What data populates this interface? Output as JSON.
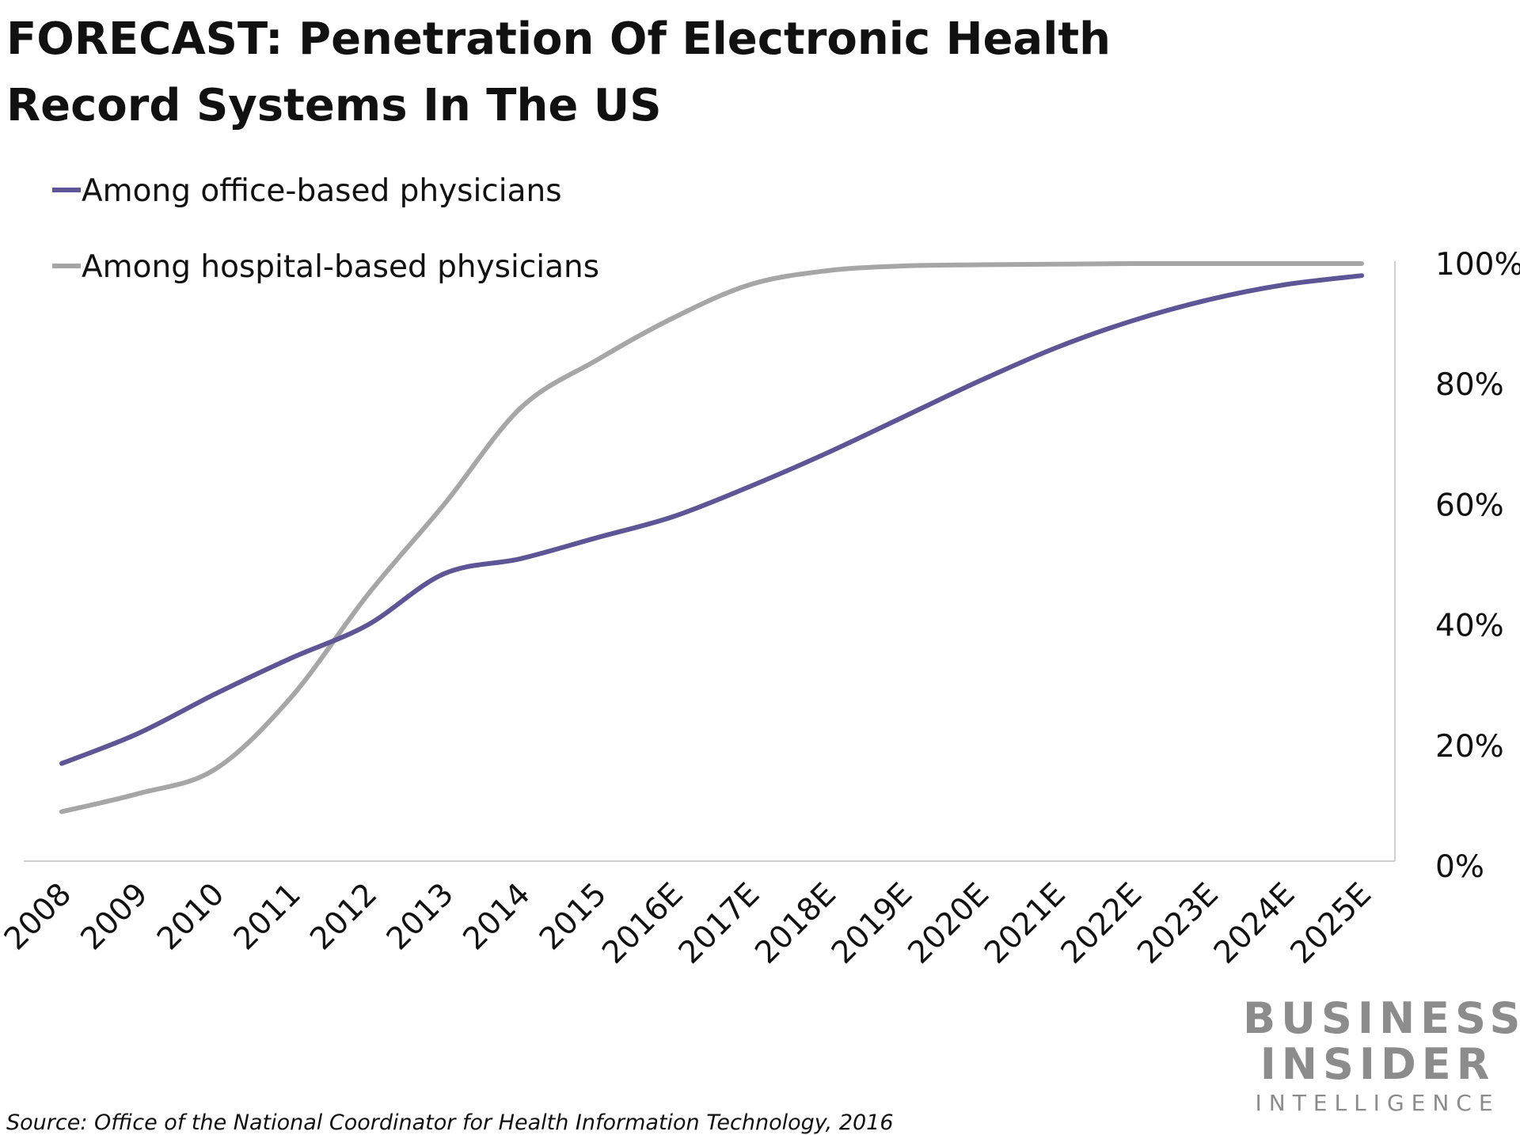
{
  "title_lines": [
    "FORECAST: Penetration Of Electronic Health",
    "Record Systems In The US"
  ],
  "source": "Source: Office of the National Coordinator for Health Information Technology, 2016",
  "logo": {
    "line1": "BUSINESS",
    "line2": "INSIDER",
    "line3": "INTELLIGENCE"
  },
  "colors": {
    "office": "#5e5597",
    "hospital": "#a6a6a6",
    "axis": "#d0d0d0"
  },
  "chart_data": {
    "type": "line",
    "title": "FORECAST: Penetration Of Electronic Health Record Systems In The US",
    "x": [
      "2008",
      "2009",
      "2010",
      "2011",
      "2012",
      "2013",
      "2014",
      "2015",
      "2016E",
      "2017E",
      "2018E",
      "2019E",
      "2020E",
      "2021E",
      "2022E",
      "2023E",
      "2024E",
      "2025E"
    ],
    "ylim": [
      0,
      100
    ],
    "yticks": [
      "0%",
      "20%",
      "40%",
      "60%",
      "80%",
      "100%"
    ],
    "y_axis_position": "right",
    "grid": false,
    "legend_position": "top-left",
    "series": [
      {
        "name": "Among office-based physicians",
        "color": "#5e5597",
        "values": [
          17,
          22,
          28.5,
          34.5,
          40,
          48.5,
          51,
          54.5,
          58,
          63,
          68.5,
          74.5,
          80.5,
          86,
          90.5,
          94,
          96.5,
          98
        ]
      },
      {
        "name": "Among hospital-based physicians",
        "color": "#a6a6a6",
        "values": [
          9,
          12,
          16,
          28,
          45,
          60,
          76,
          84,
          91,
          96.5,
          98.8,
          99.6,
          99.8,
          99.9,
          100,
          100,
          100,
          100
        ]
      }
    ]
  }
}
